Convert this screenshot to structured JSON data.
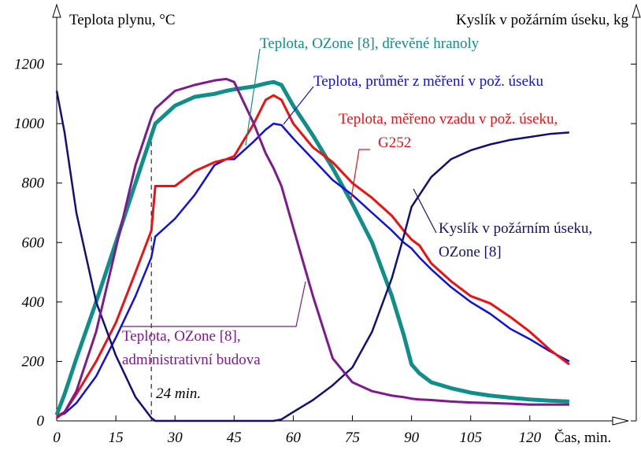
{
  "chart_data": {
    "type": "line",
    "y_label": "Teplota plynu, °C",
    "y2_label": "Kyslík v požárním úseku, kg",
    "x_label": "Čas, min.",
    "xlim": [
      0,
      147
    ],
    "ylim": [
      0,
      1376
    ],
    "xticks": [
      0,
      15,
      30,
      45,
      60,
      75,
      90,
      105,
      120
    ],
    "yticks": [
      0,
      200,
      400,
      600,
      800,
      1000,
      1200
    ],
    "x": [
      0,
      2,
      5,
      10,
      15,
      20,
      24,
      25,
      30,
      35,
      40,
      43,
      45,
      50,
      53,
      55,
      57,
      60,
      65,
      70,
      75,
      80,
      85,
      88,
      90,
      92,
      95,
      100,
      105,
      110,
      115,
      120,
      125,
      130
    ],
    "series": [
      {
        "name": [
          "Teplota, OZone [8], dřevěné hranoly"
        ],
        "color": "#108f8a",
        "width": 5,
        "values": [
          20,
          90,
          210,
          400,
          600,
          800,
          960,
          1000,
          1060,
          1090,
          1100,
          1110,
          1115,
          1125,
          1135,
          1140,
          1130,
          1060,
          960,
          850,
          730,
          600,
          420,
          290,
          190,
          160,
          130,
          110,
          95,
          85,
          78,
          72,
          68,
          65
        ]
      },
      {
        "name": [
          "Teplota, průměr z měření v pož. úseku"
        ],
        "color": "#1010e0",
        "width": 2.5,
        "values": [
          15,
          25,
          60,
          150,
          280,
          420,
          550,
          620,
          680,
          760,
          860,
          880,
          880,
          940,
          980,
          1000,
          995,
          950,
          880,
          810,
          760,
          700,
          640,
          600,
          580,
          550,
          510,
          450,
          400,
          360,
          310,
          275,
          235,
          200
        ]
      },
      {
        "name": [
          "Teplota, měřeno  vzadu v pož. úseku,",
          "G252"
        ],
        "color": "#f01010",
        "width": 3,
        "values": [
          15,
          30,
          90,
          200,
          330,
          500,
          640,
          790,
          790,
          840,
          870,
          880,
          890,
          1000,
          1080,
          1095,
          1080,
          1000,
          920,
          870,
          800,
          750,
          690,
          640,
          610,
          590,
          530,
          470,
          420,
          395,
          350,
          300,
          240,
          190
        ]
      },
      {
        "name": [
          "Kyslík v požárním úseku,",
          "OZone [8]"
        ],
        "color": "#10107a",
        "width": 2.5,
        "axis": "y2",
        "values": [
          1110,
          970,
          700,
          400,
          220,
          80,
          10,
          0,
          0,
          0,
          0,
          0,
          0,
          0,
          0,
          0,
          5,
          30,
          70,
          120,
          180,
          300,
          480,
          620,
          720,
          760,
          820,
          880,
          910,
          930,
          945,
          955,
          965,
          970
        ]
      },
      {
        "name": [
          "Teplota, OZone [8],",
          "administrativní budova"
        ],
        "color": "#801890",
        "width": 3,
        "values": [
          10,
          30,
          100,
          300,
          580,
          860,
          1020,
          1050,
          1110,
          1130,
          1145,
          1150,
          1140,
          1000,
          900,
          850,
          790,
          650,
          420,
          210,
          130,
          100,
          85,
          80,
          75,
          72,
          70,
          65,
          62,
          60,
          58,
          55,
          55,
          55
        ]
      }
    ],
    "annotations": [
      {
        "text": "24 min.",
        "x": 24
      }
    ]
  }
}
